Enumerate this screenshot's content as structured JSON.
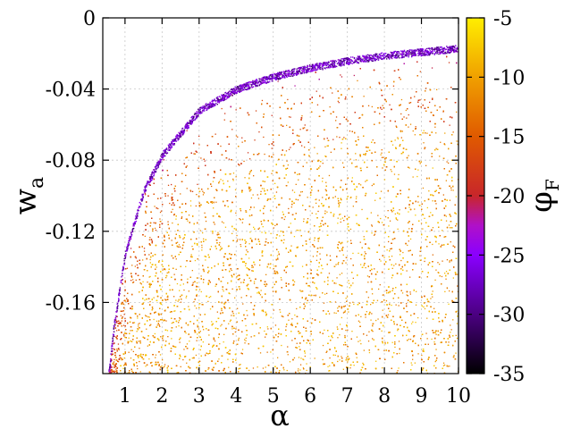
{
  "chart_data": {
    "type": "scatter",
    "title": "",
    "xlabel": "α",
    "ylabel": "w",
    "ylabel_sub": "a",
    "xlim": [
      0.4,
      10
    ],
    "ylim": [
      -0.2,
      0
    ],
    "xticks": [
      1,
      2,
      3,
      4,
      5,
      6,
      7,
      8,
      9,
      10
    ],
    "xtick_labels": [
      "1",
      "2",
      "3",
      "4",
      "5",
      "6",
      "7",
      "8",
      "9",
      "10"
    ],
    "yticks": [
      0,
      -0.04,
      -0.08,
      -0.12,
      -0.16
    ],
    "ytick_labels": [
      "0",
      "-0.04",
      "-0.08",
      "-0.12",
      "-0.16"
    ],
    "grid": true,
    "boundary_curve": {
      "description_points": [
        [
          0.55,
          -0.198
        ],
        [
          0.7,
          -0.17
        ],
        [
          1.0,
          -0.13
        ],
        [
          1.5,
          -0.095
        ],
        [
          2.0,
          -0.075
        ],
        [
          3.0,
          -0.05
        ],
        [
          4.0,
          -0.038
        ],
        [
          5.0,
          -0.031
        ],
        [
          6.0,
          -0.026
        ],
        [
          7.0,
          -0.022
        ],
        [
          8.0,
          -0.019
        ],
        [
          9.0,
          -0.017
        ],
        [
          10.0,
          -0.015
        ]
      ]
    },
    "colorbar": {
      "label": "φ",
      "label_sub": "F",
      "range": [
        -35,
        -5
      ],
      "ticks": [
        -5,
        -10,
        -15,
        -20,
        -25,
        -30,
        -35
      ],
      "tick_labels": [
        "-5",
        "-10",
        "-15",
        "-20",
        "-25",
        "-30",
        "-35"
      ],
      "colormap": [
        {
          "value": -35,
          "color": "#000000"
        },
        {
          "value": -30,
          "color": "#4b0082"
        },
        {
          "value": -25,
          "color": "#8a00ff"
        },
        {
          "value": -22.5,
          "color": "#b011c8"
        },
        {
          "value": -20,
          "color": "#c8262a"
        },
        {
          "value": -15,
          "color": "#e05a00"
        },
        {
          "value": -10,
          "color": "#f0a000"
        },
        {
          "value": -5,
          "color": "#ffee00"
        }
      ]
    }
  }
}
